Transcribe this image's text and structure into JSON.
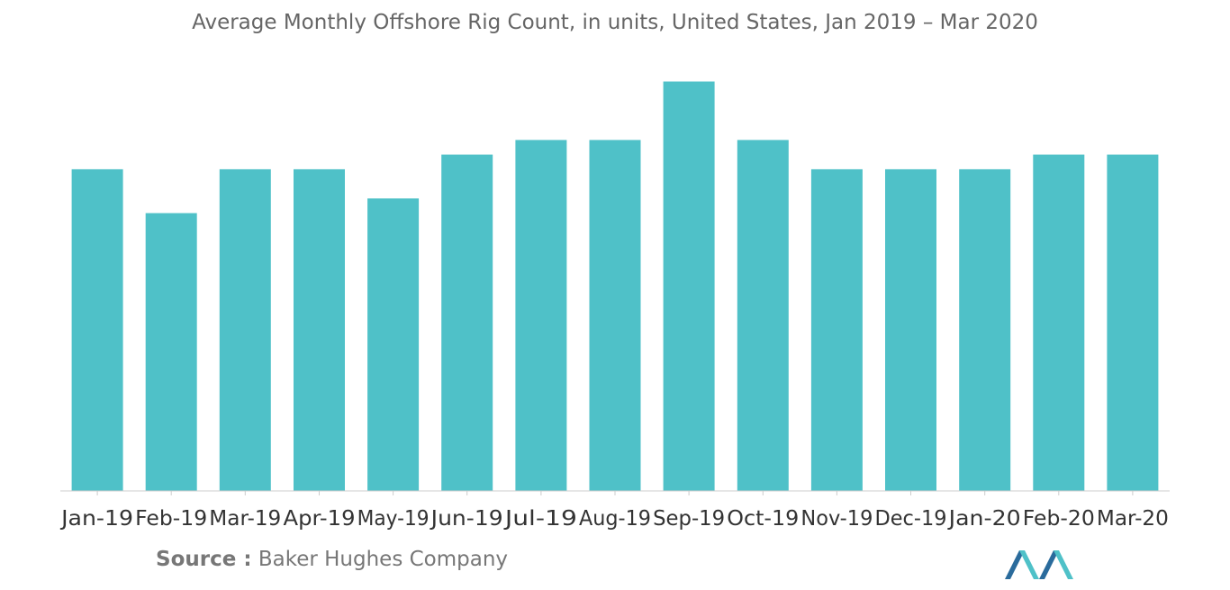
{
  "source": {
    "label": "Source :",
    "text": "Baker Hughes Company"
  },
  "colors": {
    "bar": "#4fc1c8",
    "axis": "#cccccc",
    "logo_dark": "#2a6b9c",
    "logo_light": "#4fc1c8"
  },
  "chart_data": {
    "type": "bar",
    "title": "Average Monthly Offshore Rig Count, in units, United States, Jan 2019 – Mar 2020",
    "xlabel": "",
    "ylabel": "",
    "categories": [
      "Jan-19",
      "Feb-19",
      "Mar-19",
      "Apr-19",
      "May-19",
      "Jun-19",
      "Jul-19",
      "Aug-19",
      "Sep-19",
      "Oct-19",
      "Nov-19",
      "Dec-19",
      "Jan-20",
      "Feb-20",
      "Mar-20"
    ],
    "values": [
      22,
      19,
      22,
      22,
      20,
      23,
      24,
      24,
      28,
      24,
      22,
      22,
      22,
      23,
      23
    ],
    "ylim": [
      0,
      30
    ],
    "grid": false,
    "legend": "none"
  }
}
